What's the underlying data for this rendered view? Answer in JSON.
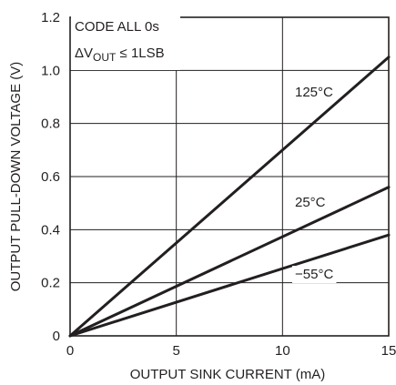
{
  "chart_data": {
    "type": "line",
    "title": "",
    "xlabel": "OUTPUT SINK CURRENT (mA)",
    "ylabel": "OUTPUT PULL-DOWN VOLTAGE (V)",
    "xlim": [
      0,
      15
    ],
    "ylim": [
      0,
      1.2
    ],
    "x_ticks": [
      0,
      5,
      10,
      15
    ],
    "x_tick_labels": [
      "0",
      "5",
      "10",
      "15"
    ],
    "y_ticks": [
      0,
      0.2,
      0.4,
      0.6,
      0.8,
      1.0,
      1.2
    ],
    "y_tick_labels": [
      "0",
      "0.2",
      "0.4",
      "0.6",
      "0.8",
      "1.0",
      "1.2"
    ],
    "grid": true,
    "annotation_lines": [
      "CODE ALL 0s",
      "ΔV",
      "OUT",
      " ≤ 1LSB"
    ],
    "series": [
      {
        "name": "125°C",
        "x": [
          0,
          15
        ],
        "y": [
          0,
          1.05
        ]
      },
      {
        "name": "25°C",
        "x": [
          0,
          15
        ],
        "y": [
          0,
          0.56
        ]
      },
      {
        "name": "−55°C",
        "x": [
          0,
          15
        ],
        "y": [
          0,
          0.38
        ]
      }
    ],
    "colors": {
      "line": "#231f20",
      "grid": "#231f20",
      "background": "#ffffff"
    }
  }
}
